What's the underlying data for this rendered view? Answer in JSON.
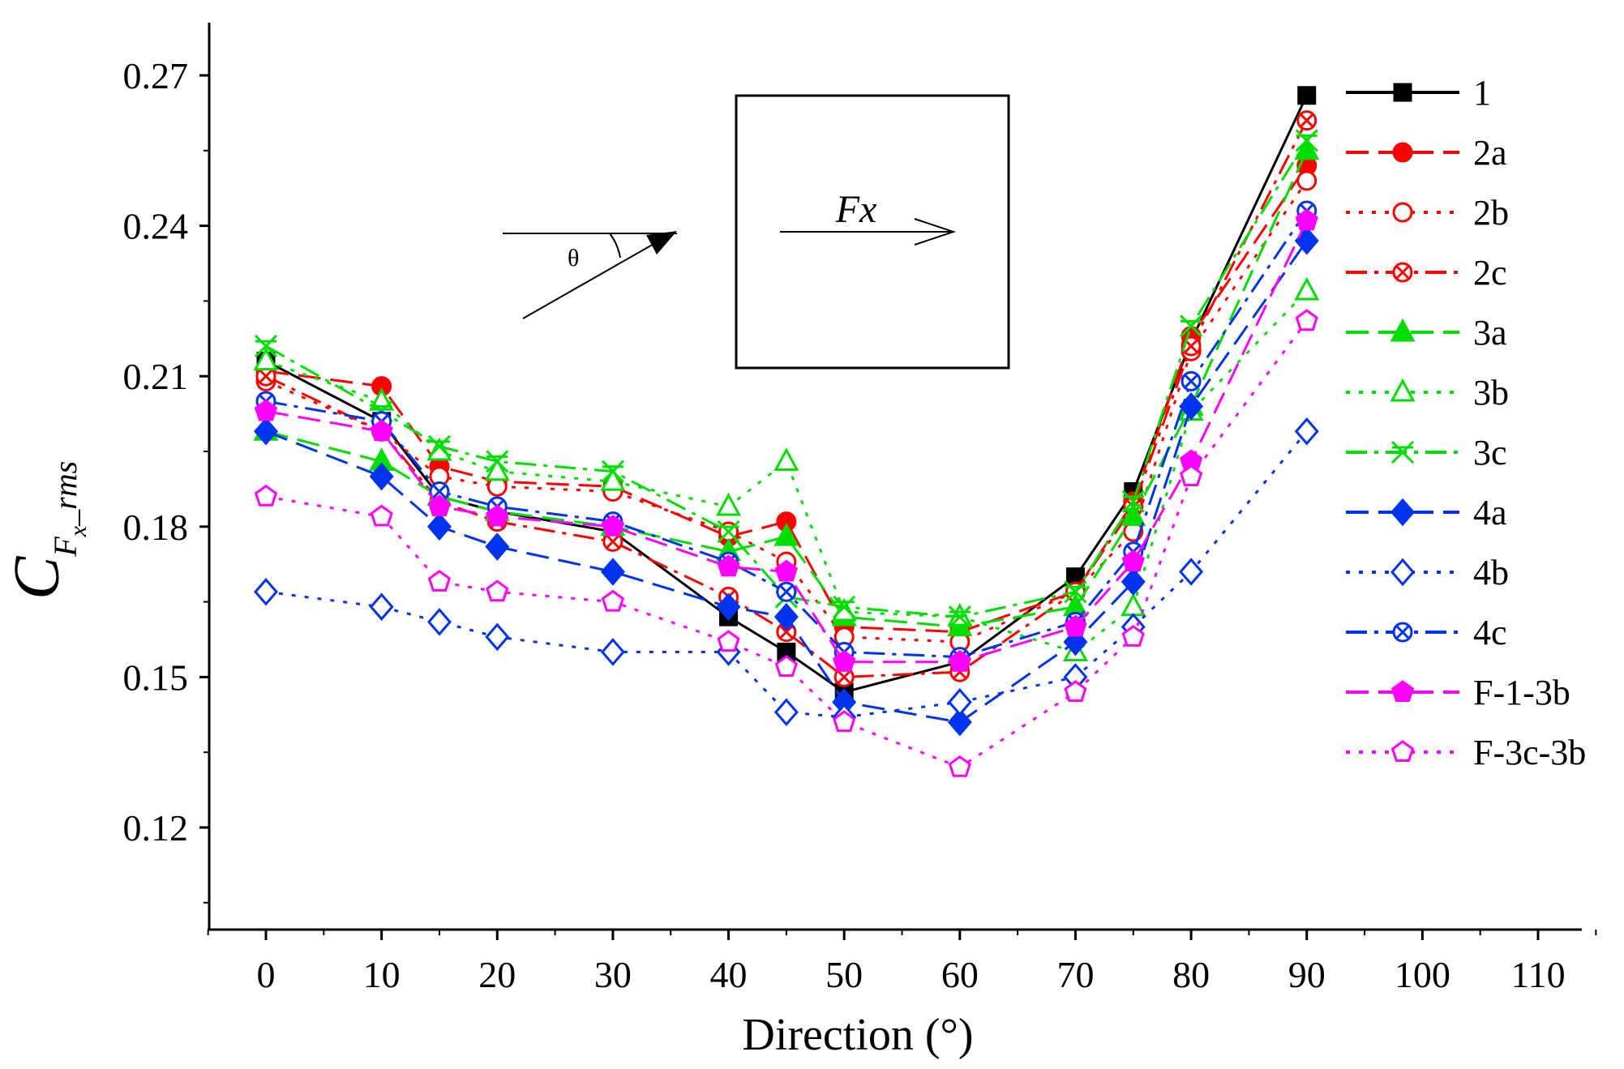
{
  "chart_data": {
    "type": "line",
    "title": "",
    "xlabel": "Direction (°)",
    "ylabel": {
      "base": "C",
      "sub": "F",
      "subsub": "x",
      "suffix": "_rms"
    },
    "xlim": [
      -5,
      115
    ],
    "ylim": [
      0.1,
      0.28
    ],
    "xticks": [
      0,
      10,
      20,
      30,
      40,
      50,
      60,
      70,
      80,
      90,
      100,
      110
    ],
    "xtick_labels": [
      "0",
      "10",
      "20",
      "30",
      "40",
      "50",
      "60",
      "70",
      "80",
      "90",
      "100",
      "110"
    ],
    "yticks": [
      0.12,
      0.15,
      0.18,
      0.21,
      0.24,
      0.27
    ],
    "ytick_labels": [
      "0.12",
      "0.15",
      "0.18",
      "0.21",
      "0.24",
      "0.27"
    ],
    "grid": false,
    "legend_position": "right",
    "x": [
      0,
      10,
      15,
      20,
      30,
      40,
      45,
      50,
      60,
      70,
      75,
      80,
      90
    ],
    "series": [
      {
        "name": "1",
        "color": "#000000",
        "dash": "solid",
        "marker": "square",
        "filled": true,
        "values": [
          0.213,
          0.201,
          0.186,
          0.183,
          0.179,
          0.162,
          0.155,
          0.147,
          0.153,
          0.17,
          0.187,
          0.217,
          0.266
        ]
      },
      {
        "name": "2a",
        "color": "#ff0000",
        "dash": "dash",
        "marker": "circle",
        "filled": true,
        "values": [
          0.211,
          0.208,
          0.192,
          0.189,
          0.188,
          0.178,
          0.181,
          0.16,
          0.159,
          0.167,
          0.185,
          0.218,
          0.252
        ]
      },
      {
        "name": "2b",
        "color": "#ff0000",
        "dash": "dot",
        "marker": "circle",
        "filled": false,
        "values": [
          0.209,
          0.199,
          0.19,
          0.188,
          0.187,
          0.179,
          0.173,
          0.158,
          0.157,
          0.167,
          0.179,
          0.215,
          0.249
        ]
      },
      {
        "name": "2c",
        "color": "#ff0000",
        "dash": "dashdot",
        "marker": "circle-x",
        "filled": false,
        "values": [
          0.21,
          0.199,
          0.185,
          0.181,
          0.177,
          0.166,
          0.159,
          0.15,
          0.151,
          0.167,
          0.184,
          0.216,
          0.261
        ]
      },
      {
        "name": "3a",
        "color": "#00dd00",
        "dash": "dash",
        "marker": "triangle",
        "filled": true,
        "values": [
          0.199,
          0.193,
          0.186,
          0.183,
          0.18,
          0.175,
          0.178,
          0.162,
          0.16,
          0.164,
          0.182,
          0.204,
          0.255
        ]
      },
      {
        "name": "3b",
        "color": "#00dd00",
        "dash": "dot",
        "marker": "triangle",
        "filled": false,
        "values": [
          0.213,
          0.205,
          0.195,
          0.191,
          0.189,
          0.184,
          0.193,
          0.163,
          0.162,
          0.155,
          0.164,
          0.203,
          0.227
        ]
      },
      {
        "name": "3c",
        "color": "#00dd00",
        "dash": "dashdot",
        "marker": "x-star",
        "filled": false,
        "values": [
          0.216,
          0.203,
          0.196,
          0.193,
          0.191,
          0.179,
          0.166,
          0.164,
          0.162,
          0.167,
          0.185,
          0.22,
          0.257
        ]
      },
      {
        "name": "4a",
        "color": "#0033ee",
        "dash": "dash",
        "marker": "diamond",
        "filled": true,
        "values": [
          0.199,
          0.19,
          0.18,
          0.176,
          0.171,
          0.164,
          0.162,
          0.145,
          0.141,
          0.157,
          0.169,
          0.204,
          0.237
        ]
      },
      {
        "name": "4b",
        "color": "#0033ee",
        "dash": "dot",
        "marker": "diamond",
        "filled": false,
        "values": [
          0.167,
          0.164,
          0.161,
          0.158,
          0.155,
          0.155,
          0.143,
          0.142,
          0.145,
          0.15,
          0.16,
          0.171,
          0.199
        ]
      },
      {
        "name": "4c",
        "color": "#0033ee",
        "dash": "dashdot",
        "marker": "circle-x",
        "filled": false,
        "values": [
          0.205,
          0.201,
          0.187,
          0.184,
          0.181,
          0.173,
          0.167,
          0.155,
          0.154,
          0.161,
          0.175,
          0.209,
          0.243
        ]
      },
      {
        "name": "F-1-3b",
        "color": "#ff00ff",
        "dash": "dash",
        "marker": "pentagon",
        "filled": true,
        "values": [
          0.203,
          0.199,
          0.184,
          0.182,
          0.18,
          0.172,
          0.171,
          0.153,
          0.153,
          0.16,
          0.173,
          0.193,
          0.241
        ]
      },
      {
        "name": "F-3c-3b",
        "color": "#ff00ff",
        "dash": "dot",
        "marker": "pentagon",
        "filled": false,
        "values": [
          0.186,
          0.182,
          0.169,
          0.167,
          0.165,
          0.157,
          0.152,
          0.141,
          0.132,
          0.147,
          0.158,
          0.19,
          0.221
        ]
      }
    ]
  },
  "inset": {
    "angle_label": "θ",
    "force_label": "Fx"
  }
}
